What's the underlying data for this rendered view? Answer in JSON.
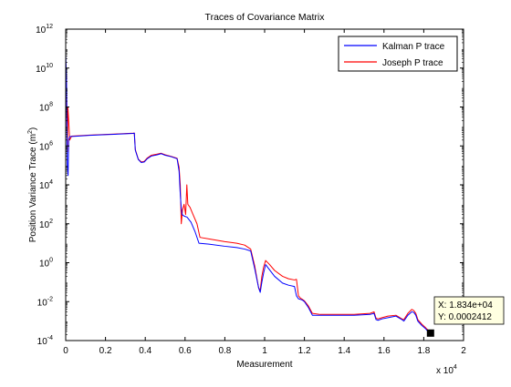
{
  "chart_data": {
    "type": "line",
    "title": "Traces of Covariance Matrix",
    "xlabel": "Measurement",
    "ylabel": "Position Variance Trace (m",
    "ylabel_superscript": "2",
    "ylabel_suffix": ")",
    "xlim": [
      0,
      20000
    ],
    "ylim": [
      0.0001,
      1000000000000
    ],
    "yscale": "log",
    "x_multiplier_label": "x 10",
    "x_multiplier_exponent": "4",
    "x_ticks": [
      {
        "value": 0,
        "label": "0"
      },
      {
        "value": 2000,
        "label": "0.2"
      },
      {
        "value": 4000,
        "label": "0.4"
      },
      {
        "value": 6000,
        "label": "0.6"
      },
      {
        "value": 8000,
        "label": "0.8"
      },
      {
        "value": 10000,
        "label": "1"
      },
      {
        "value": 12000,
        "label": "1.2"
      },
      {
        "value": 14000,
        "label": "1.4"
      },
      {
        "value": 16000,
        "label": "1.6"
      },
      {
        "value": 18000,
        "label": "1.8"
      },
      {
        "value": 20000,
        "label": "2"
      }
    ],
    "y_ticks": [
      {
        "exp": -4,
        "label": "10",
        "sup": "-4"
      },
      {
        "exp": -2,
        "label": "10",
        "sup": "-2"
      },
      {
        "exp": 0,
        "label": "10",
        "sup": "0"
      },
      {
        "exp": 2,
        "label": "10",
        "sup": "2"
      },
      {
        "exp": 4,
        "label": "10",
        "sup": "4"
      },
      {
        "exp": 6,
        "label": "10",
        "sup": "6"
      },
      {
        "exp": 8,
        "label": "10",
        "sup": "8"
      },
      {
        "exp": 10,
        "label": "10",
        "sup": "10"
      },
      {
        "exp": 12,
        "label": "10",
        "sup": "12"
      }
    ],
    "grid": false,
    "legend_position": "top-right",
    "series": [
      {
        "name": "Kalman P trace",
        "color": "#0000ff",
        "points": [
          [
            0,
            50000000000
          ],
          [
            40,
            3000000000
          ],
          [
            80,
            100000
          ],
          [
            120,
            30000
          ],
          [
            150,
            2000000
          ],
          [
            200,
            3000000
          ],
          [
            600,
            3200000
          ],
          [
            1200,
            3500000
          ],
          [
            2000,
            3800000
          ],
          [
            2800,
            4100000
          ],
          [
            3400,
            4400000
          ],
          [
            3450,
            4500000
          ],
          [
            3500,
            600000
          ],
          [
            3650,
            200000
          ],
          [
            3800,
            140000
          ],
          [
            3950,
            150000
          ],
          [
            4100,
            220000
          ],
          [
            4300,
            300000
          ],
          [
            4600,
            350000
          ],
          [
            4800,
            400000
          ],
          [
            5000,
            330000
          ],
          [
            5300,
            280000
          ],
          [
            5600,
            220000
          ],
          [
            5700,
            50000
          ],
          [
            5750,
            5000
          ],
          [
            5800,
            800
          ],
          [
            5850,
            300
          ],
          [
            5950,
            250
          ],
          [
            6100,
            220
          ],
          [
            6300,
            120
          ],
          [
            6500,
            40
          ],
          [
            6700,
            10
          ],
          [
            7200,
            9
          ],
          [
            8000,
            7
          ],
          [
            8600,
            6
          ],
          [
            9000,
            5
          ],
          [
            9300,
            4
          ],
          [
            9500,
            0.5
          ],
          [
            9700,
            0.05
          ],
          [
            9780,
            0.03
          ],
          [
            9860,
            0.1
          ],
          [
            9950,
            0.3
          ],
          [
            10050,
            0.8
          ],
          [
            10200,
            0.5
          ],
          [
            10500,
            0.2
          ],
          [
            10900,
            0.09
          ],
          [
            11200,
            0.07
          ],
          [
            11500,
            0.06
          ],
          [
            11600,
            0.02
          ],
          [
            11700,
            0.014
          ],
          [
            11800,
            0.013
          ],
          [
            11900,
            0.012
          ],
          [
            12000,
            0.01
          ],
          [
            12200,
            0.005
          ],
          [
            12400,
            0.002
          ],
          [
            12800,
            0.002
          ],
          [
            13600,
            0.002
          ],
          [
            14500,
            0.002
          ],
          [
            15300,
            0.0022
          ],
          [
            15500,
            0.0025
          ],
          [
            15600,
            0.0012
          ],
          [
            15700,
            0.0011
          ],
          [
            15900,
            0.0013
          ],
          [
            16200,
            0.0015
          ],
          [
            16600,
            0.0018
          ],
          [
            16900,
            0.0012
          ],
          [
            17000,
            0.001
          ],
          [
            17200,
            0.002
          ],
          [
            17400,
            0.003
          ],
          [
            17500,
            0.0028
          ],
          [
            17600,
            0.002
          ],
          [
            17700,
            0.001
          ],
          [
            17900,
            0.0006
          ],
          [
            18100,
            0.0004
          ],
          [
            18200,
            0.0003
          ],
          [
            18340,
            0.0002412
          ]
        ]
      },
      {
        "name": "Joseph P trace",
        "color": "#ff0000",
        "points": [
          [
            0,
            20000000000
          ],
          [
            40,
            2000000000
          ],
          [
            80,
            500000
          ],
          [
            110,
            100000000
          ],
          [
            150,
            20000000
          ],
          [
            200,
            2000000
          ],
          [
            300,
            3200000
          ],
          [
            600,
            3300000
          ],
          [
            1200,
            3600000
          ],
          [
            2000,
            3900000
          ],
          [
            2800,
            4200000
          ],
          [
            3400,
            4500000
          ],
          [
            3450,
            4600000
          ],
          [
            3500,
            650000
          ],
          [
            3650,
            210000
          ],
          [
            3800,
            150000
          ],
          [
            3950,
            160000
          ],
          [
            4100,
            240000
          ],
          [
            4300,
            330000
          ],
          [
            4600,
            380000
          ],
          [
            4800,
            420000
          ],
          [
            5000,
            350000
          ],
          [
            5300,
            290000
          ],
          [
            5600,
            230000
          ],
          [
            5700,
            80000
          ],
          [
            5760,
            10000
          ],
          [
            5810,
            100
          ],
          [
            5870,
            500
          ],
          [
            5950,
            1000
          ],
          [
            6030,
            300
          ],
          [
            6090,
            10000
          ],
          [
            6140,
            1000
          ],
          [
            6250,
            700
          ],
          [
            6400,
            300
          ],
          [
            6600,
            100
          ],
          [
            6750,
            20
          ],
          [
            7300,
            16
          ],
          [
            8000,
            12
          ],
          [
            8600,
            10
          ],
          [
            9000,
            8
          ],
          [
            9300,
            5
          ],
          [
            9500,
            0.7
          ],
          [
            9700,
            0.05
          ],
          [
            9780,
            0.04
          ],
          [
            9860,
            0.2
          ],
          [
            9950,
            0.6
          ],
          [
            10050,
            1.3
          ],
          [
            10250,
            0.8
          ],
          [
            10500,
            0.4
          ],
          [
            10900,
            0.2
          ],
          [
            11200,
            0.15
          ],
          [
            11500,
            0.13
          ],
          [
            11600,
            0.14
          ],
          [
            11700,
            0.02
          ],
          [
            11800,
            0.015
          ],
          [
            11900,
            0.013
          ],
          [
            12000,
            0.011
          ],
          [
            12200,
            0.006
          ],
          [
            12400,
            0.0025
          ],
          [
            12800,
            0.0022
          ],
          [
            13600,
            0.0022
          ],
          [
            14500,
            0.0022
          ],
          [
            15300,
            0.0025
          ],
          [
            15500,
            0.003
          ],
          [
            15600,
            0.0014
          ],
          [
            15700,
            0.0013
          ],
          [
            15900,
            0.0015
          ],
          [
            16200,
            0.0018
          ],
          [
            16600,
            0.002
          ],
          [
            16900,
            0.0013
          ],
          [
            17000,
            0.0012
          ],
          [
            17200,
            0.0025
          ],
          [
            17400,
            0.004
          ],
          [
            17500,
            0.0035
          ],
          [
            17600,
            0.0025
          ],
          [
            17700,
            0.0012
          ],
          [
            17900,
            0.0007
          ],
          [
            18100,
            0.00045
          ],
          [
            18200,
            0.00035
          ],
          [
            18340,
            0.00028
          ]
        ]
      }
    ],
    "datatip": {
      "x": 18340,
      "y": 0.0002412,
      "x_text": "X: 1.834e+04",
      "y_text": "Y: 0.0002412"
    }
  }
}
